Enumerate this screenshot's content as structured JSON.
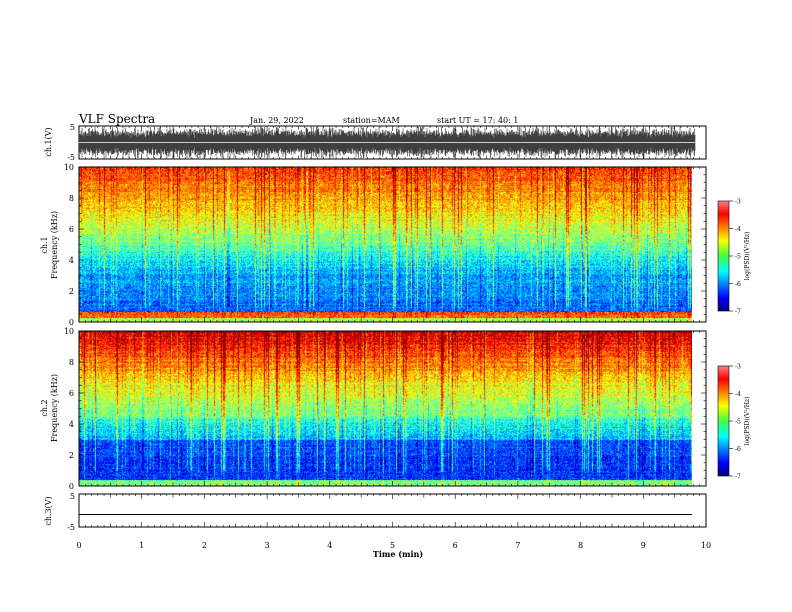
{
  "header": {
    "title": "VLF Spectra",
    "date": "Jan. 29, 2022",
    "station": "station=MAM",
    "start": "start UT =   17: 40: 1"
  },
  "chart_data": [
    {
      "type": "line",
      "panel": "ch1-waveform",
      "ylabel": "ch.1(V)",
      "ylim": [
        -5,
        5
      ],
      "yticks": [
        "5",
        "-5"
      ],
      "xlim": [
        0,
        10
      ],
      "description_values": {
        "min": -5,
        "max": 5
      }
    },
    {
      "type": "heatmap",
      "panel": "ch1-spectrogram",
      "ylabel_line1": "ch.1",
      "ylabel_line2": "Frequency (kHz)",
      "ylim": [
        0,
        10
      ],
      "yticks": [
        "0",
        "2",
        "4",
        "6",
        "8",
        "10"
      ],
      "xlim": [
        0,
        9.83
      ],
      "colorbar": {
        "label": "log(PSD)(V²/Hz)",
        "range": [
          -7,
          -3
        ],
        "ticks": [
          "-3",
          "-4",
          "-5",
          "-6",
          "-7"
        ]
      }
    },
    {
      "type": "heatmap",
      "panel": "ch2-spectrogram",
      "ylabel_line1": "ch.2",
      "ylabel_line2": "Frequency (kHz)",
      "ylim": [
        0,
        10
      ],
      "yticks": [
        "0",
        "2",
        "4",
        "6",
        "8",
        "10"
      ],
      "xlim": [
        0,
        9.83
      ],
      "colorbar": {
        "label": "log(PSD)(V²/Hz)",
        "range": [
          -7,
          -3
        ],
        "ticks": [
          "-3",
          "-4",
          "-5",
          "-6",
          "-7"
        ]
      }
    },
    {
      "type": "line",
      "panel": "ch3-waveform",
      "ylabel": "ch.3(V)",
      "ylim": [
        -5,
        5
      ],
      "yticks": [
        "5",
        "-5"
      ],
      "values": [
        -1.2,
        -1.2
      ]
    }
  ],
  "xaxis": {
    "label": "Time (min)",
    "ticks": [
      "0",
      "1",
      "2",
      "3",
      "4",
      "5",
      "6",
      "7",
      "8",
      "9",
      "10"
    ],
    "range": [
      0,
      10
    ]
  },
  "colors": {
    "jet": [
      "#000080",
      "#0000ff",
      "#0080ff",
      "#00ffff",
      "#80ff80",
      "#ffff00",
      "#ff8000",
      "#ff0000",
      "#800000"
    ]
  }
}
